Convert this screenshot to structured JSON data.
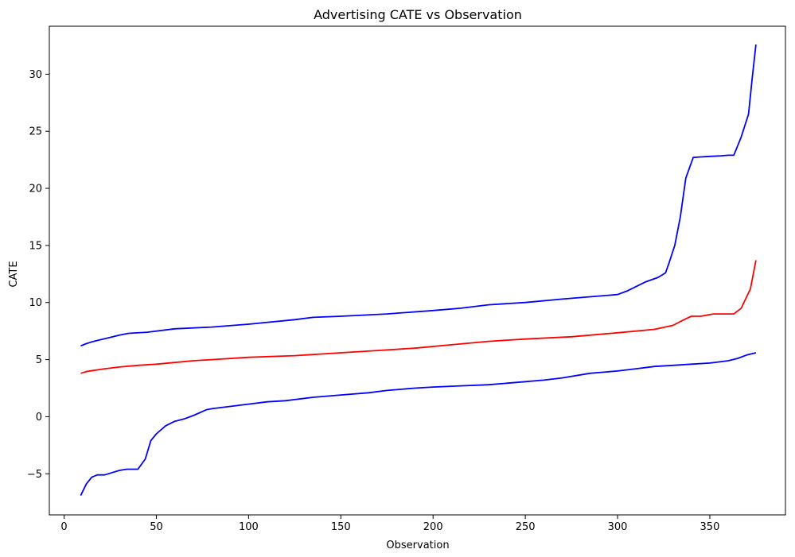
{
  "chart_data": {
    "type": "line",
    "title": "Advertising CATE vs Observation",
    "xlabel": "Observation",
    "ylabel": "CATE",
    "xlim": [
      -8,
      391
    ],
    "ylim": [
      -8.6,
      34.2
    ],
    "grid": false,
    "xticks": [
      0,
      50,
      100,
      150,
      200,
      250,
      300,
      350
    ],
    "yticks": [
      -5,
      0,
      5,
      10,
      15,
      20,
      25,
      30
    ],
    "tick_labels": {
      "x": [
        "0",
        "50",
        "100",
        "150",
        "200",
        "250",
        "300",
        "350"
      ],
      "y": [
        "−5",
        "0",
        "5",
        "10",
        "15",
        "20",
        "25",
        "30"
      ]
    },
    "series": [
      {
        "color": "#0000ff",
        "x": [
          9,
          12,
          15,
          18,
          22,
          26,
          30,
          34,
          40,
          44,
          47,
          50,
          55,
          60,
          65,
          70,
          77,
          80,
          90,
          100,
          110,
          120,
          125,
          135,
          150,
          165,
          175,
          190,
          200,
          215,
          230,
          245,
          260,
          270,
          285,
          300,
          310,
          320,
          330,
          340,
          350,
          355,
          360,
          365,
          370,
          375
        ],
        "values": [
          -6.9,
          -5.9,
          -5.3,
          -5.1,
          -5.1,
          -4.9,
          -4.7,
          -4.6,
          -4.6,
          -3.7,
          -2.1,
          -1.5,
          -0.8,
          -0.4,
          -0.2,
          0.1,
          0.6,
          0.7,
          0.9,
          1.1,
          1.3,
          1.4,
          1.5,
          1.7,
          1.9,
          2.1,
          2.3,
          2.5,
          2.6,
          2.7,
          2.8,
          3.0,
          3.2,
          3.4,
          3.8,
          4.0,
          4.2,
          4.4,
          4.5,
          4.6,
          4.7,
          4.8,
          4.9,
          5.1,
          5.4,
          5.6
        ]
      },
      {
        "color": "#ff0000",
        "x": [
          9,
          12,
          16,
          22,
          30,
          40,
          50,
          60,
          70,
          80,
          100,
          125,
          150,
          170,
          190,
          210,
          230,
          250,
          275,
          300,
          320,
          330,
          336,
          340,
          345,
          352,
          358,
          363,
          367,
          372,
          375
        ],
        "values": [
          3.8,
          3.95,
          4.05,
          4.2,
          4.35,
          4.5,
          4.6,
          4.75,
          4.9,
          5.0,
          5.2,
          5.35,
          5.6,
          5.8,
          6.0,
          6.3,
          6.6,
          6.8,
          7.0,
          7.35,
          7.65,
          8.0,
          8.5,
          8.8,
          8.8,
          9.0,
          9.0,
          9.0,
          9.5,
          11.2,
          13.7
        ]
      },
      {
        "color": "#0000ff",
        "x": [
          9,
          12,
          15,
          20,
          25,
          30,
          35,
          45,
          60,
          80,
          100,
          125,
          135,
          150,
          175,
          200,
          215,
          230,
          250,
          270,
          300,
          305,
          315,
          322,
          326,
          328,
          331,
          334,
          337,
          341,
          345,
          350,
          356,
          360,
          363,
          367,
          371,
          373,
          375
        ],
        "values": [
          6.2,
          6.4,
          6.55,
          6.75,
          6.95,
          7.15,
          7.3,
          7.4,
          7.7,
          7.85,
          8.1,
          8.5,
          8.7,
          8.8,
          9.0,
          9.3,
          9.5,
          9.8,
          10.0,
          10.3,
          10.7,
          11.0,
          11.8,
          12.2,
          12.6,
          13.5,
          15.0,
          17.5,
          20.9,
          22.7,
          22.75,
          22.8,
          22.85,
          22.9,
          22.9,
          24.5,
          26.5,
          29.7,
          32.6
        ]
      }
    ]
  }
}
